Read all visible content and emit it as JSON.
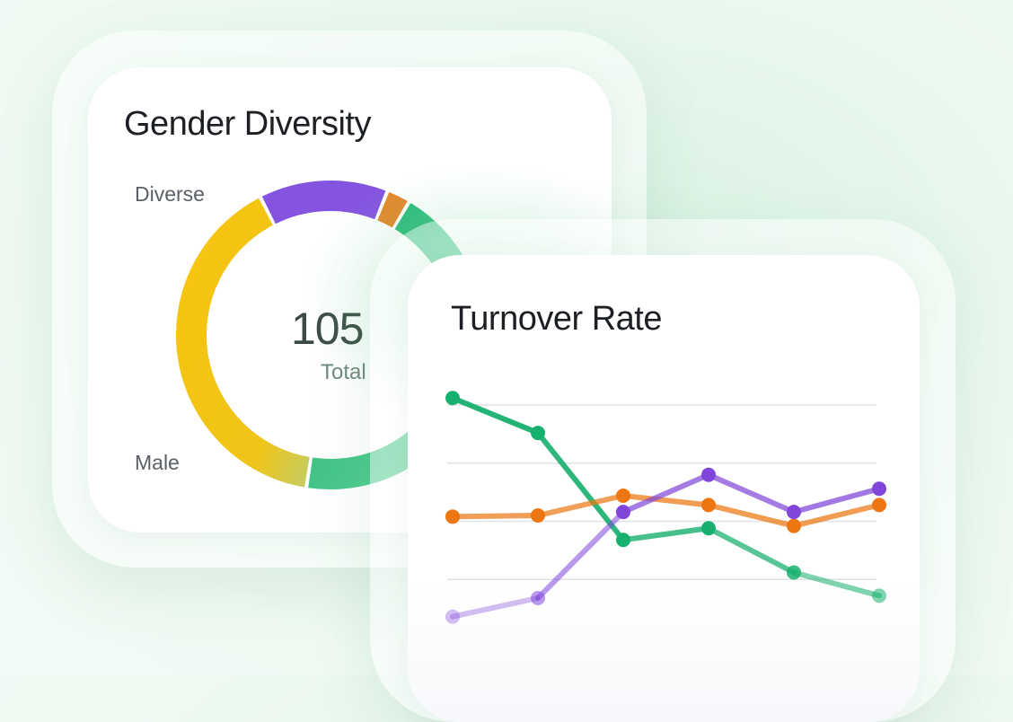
{
  "colors": {
    "female": "#f5c40f",
    "diverse": "#8454e0",
    "other": "#e3882a",
    "male": "#18b06e",
    "series_green": "#18b06e",
    "series_orange": "#ec7712",
    "series_purple": "#7f46d9",
    "grid": "#dfe2e7"
  },
  "gender_card": {
    "title": "Gender Diversity",
    "label_diverse": "Diverse",
    "label_male": "Male",
    "total_value": "105",
    "total_label": "Total"
  },
  "turnover_card": {
    "title": "Turnover Rate"
  },
  "chart_data": [
    {
      "type": "pie",
      "title": "Gender Diversity",
      "center_value": "105",
      "center_label": "Total",
      "slices": [
        {
          "name": "Diverse",
          "value": 13.5,
          "color": "#8454e0"
        },
        {
          "name": "",
          "value": 2.5,
          "color": "#e3882a"
        },
        {
          "name": "Male",
          "value": 44,
          "color": "#18b06e"
        },
        {
          "name": "",
          "value": 40,
          "color": "#f5c40f"
        }
      ]
    },
    {
      "type": "line",
      "title": "Turnover Rate",
      "x": [
        1,
        2,
        3,
        4,
        5,
        6
      ],
      "ylim": [
        0,
        100
      ],
      "grid": true,
      "gridlines": [
        25,
        50,
        75,
        100
      ],
      "series": [
        {
          "name": "",
          "color": "#18b06e",
          "values": [
            103,
            88,
            42,
            47,
            28,
            18
          ]
        },
        {
          "name": "",
          "color": "#ec7712",
          "values": [
            52,
            52.5,
            61,
            57,
            48,
            57
          ]
        },
        {
          "name": "",
          "color": "#7f46d9",
          "values": [
            9,
            17,
            54,
            70,
            54,
            64
          ]
        }
      ]
    }
  ]
}
